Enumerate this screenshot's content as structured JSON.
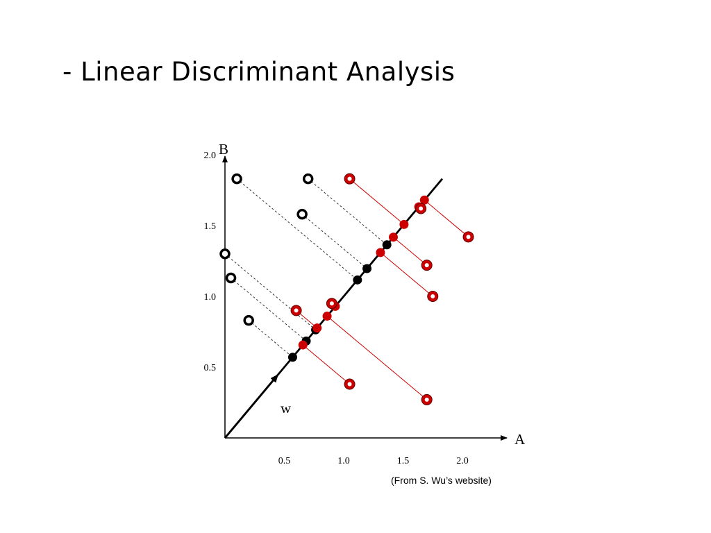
{
  "slide": {
    "title": "- Linear Discriminant Analysis",
    "credit": "(From S. Wu’s website)"
  },
  "colors": {
    "class_black": "#000000",
    "class_red": "#cc0000",
    "projection_line_black": "#333333",
    "projection_line_red": "#cc0000"
  },
  "chart_data": {
    "type": "scatter",
    "xlabel": "A",
    "ylabel": "B",
    "x_ticks": [
      "0.5",
      "1.0",
      "1.5",
      "2.0"
    ],
    "y_ticks": [
      "0.5",
      "1.0",
      "1.5",
      "2.0"
    ],
    "xlim": [
      0,
      2.3
    ],
    "ylim": [
      0,
      2.2
    ],
    "vector_label": "w",
    "projection_direction": [
      1,
      1
    ],
    "series": [
      {
        "class": "black",
        "points": [
          [
            0.1,
            1.83
          ],
          [
            0.7,
            1.83
          ],
          [
            0.65,
            1.58
          ],
          [
            0.0,
            1.3
          ],
          [
            0.05,
            1.13
          ],
          [
            0.2,
            0.83
          ]
        ]
      },
      {
        "class": "red",
        "points": [
          [
            1.05,
            1.83
          ],
          [
            1.65,
            1.62
          ],
          [
            2.05,
            1.42
          ],
          [
            1.7,
            1.22
          ],
          [
            1.75,
            1.0
          ],
          [
            0.6,
            0.9
          ],
          [
            0.9,
            0.95
          ],
          [
            1.05,
            0.38
          ],
          [
            1.7,
            0.27
          ]
        ]
      }
    ]
  }
}
